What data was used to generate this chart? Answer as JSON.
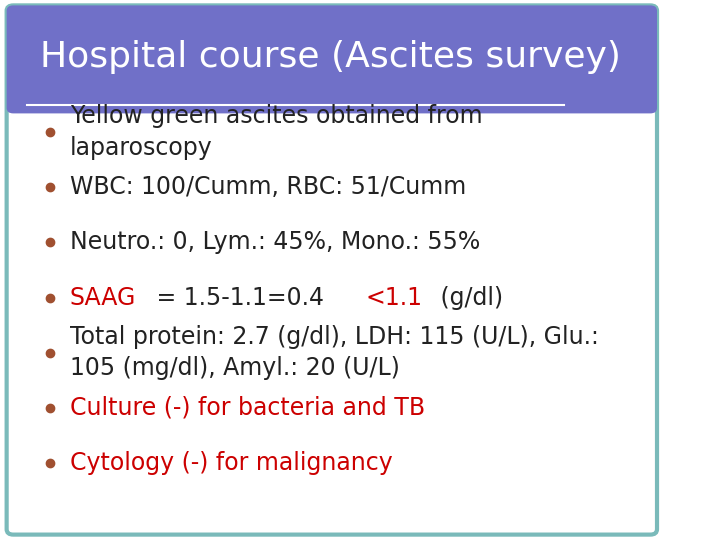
{
  "title": "Hospital course (Ascites survey)",
  "title_bg_color": "#7070C8",
  "title_text_color": "#FFFFFF",
  "slide_bg_color": "#FFFFFF",
  "border_color": "#7ABABA",
  "bullet_dot_color": "#A05030",
  "bullet_items": [
    {
      "lines": [
        "Yellow green ascites obtained from",
        "laparoscopy"
      ],
      "segments": [
        [
          {
            "text": "Yellow green ascites obtained from\nlaparoscopy",
            "color": "#222222"
          }
        ]
      ]
    },
    {
      "lines": [
        "WBC: 100/Cumm, RBC: 51/Cumm"
      ],
      "segments": [
        [
          {
            "text": "WBC: 100/Cumm, RBC: 51/Cumm",
            "color": "#222222"
          }
        ]
      ]
    },
    {
      "lines": [
        "Neutro.: 0, Lym.: 45%, Mono.: 55%"
      ],
      "segments": [
        [
          {
            "text": "Neutro.: 0, Lym.: 45%, Mono.: 55%",
            "color": "#222222"
          }
        ]
      ]
    },
    {
      "lines": [
        "SAAG = 1.5-1.1=0.4 <1.1 (g/dl)"
      ],
      "segments": [
        [
          {
            "text": "SAAG",
            "color": "#CC0000"
          },
          {
            "text": " = 1.5-1.1=0.4 ",
            "color": "#222222"
          },
          {
            "text": "<1.1",
            "color": "#CC0000"
          },
          {
            "text": " (g/dl)",
            "color": "#222222"
          }
        ]
      ]
    },
    {
      "lines": [
        "Total protein: 2.7 (g/dl), LDH: 115 (U/L), Glu.:",
        "105 (mg/dl), Amyl.: 20 (U/L)"
      ],
      "segments": [
        [
          {
            "text": "Total protein: 2.7 (g/dl), LDH: 115 (U/L), Glu.:\n105 (mg/dl), Amyl.: 20 (U/L)",
            "color": "#222222"
          }
        ]
      ]
    },
    {
      "lines": [
        "Culture (-) for bacteria and TB"
      ],
      "segments": [
        [
          {
            "text": "Culture (-) for bacteria and TB",
            "color": "#CC0000"
          }
        ]
      ]
    },
    {
      "lines": [
        "Cytology (-) for malignancy"
      ],
      "segments": [
        [
          {
            "text": "Cytology (-) for malignancy",
            "color": "#CC0000"
          }
        ]
      ]
    }
  ],
  "title_fontsize": 26,
  "bullet_fontsize": 17,
  "figsize": [
    7.2,
    5.4
  ],
  "dpi": 100
}
